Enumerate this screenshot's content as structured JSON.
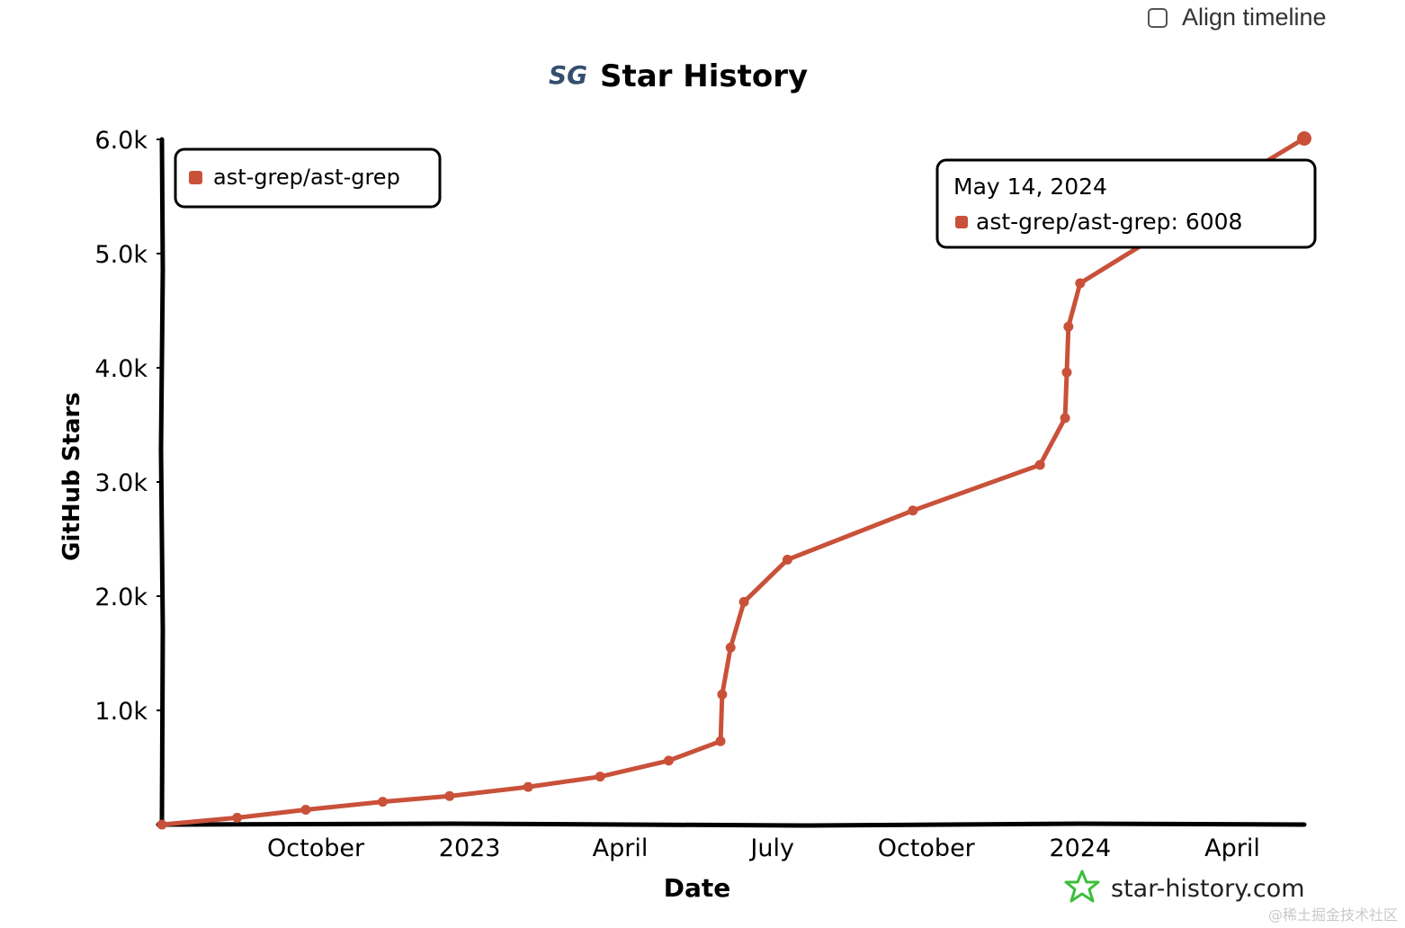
{
  "align_timeline": {
    "label": "Align timeline",
    "checked": false
  },
  "chart_data": {
    "type": "line",
    "title": "Star History",
    "logo_text": "SG",
    "xlabel": "Date",
    "ylabel": "GitHub Stars",
    "ylim": [
      0,
      6000
    ],
    "xlim": [
      "2022-07-01",
      "2024-05-14"
    ],
    "y_ticks": [
      {
        "value": 1000,
        "label": "1.0k"
      },
      {
        "value": 2000,
        "label": "2.0k"
      },
      {
        "value": 3000,
        "label": "3.0k"
      },
      {
        "value": 4000,
        "label": "4.0k"
      },
      {
        "value": 5000,
        "label": "5.0k"
      },
      {
        "value": 6000,
        "label": "6.0k"
      }
    ],
    "x_ticks": [
      {
        "date": "2022-10-01",
        "label": "October"
      },
      {
        "date": "2023-01-01",
        "label": "2023"
      },
      {
        "date": "2023-04-01",
        "label": "April"
      },
      {
        "date": "2023-07-01",
        "label": "July"
      },
      {
        "date": "2023-10-01",
        "label": "October"
      },
      {
        "date": "2024-01-01",
        "label": "2024"
      },
      {
        "date": "2024-04-01",
        "label": "April"
      }
    ],
    "grid": false,
    "legend_position": "top-left",
    "series": [
      {
        "name": "ast-grep/ast-grep",
        "color": "#c9513a",
        "points": [
          {
            "date": "2022-07-01",
            "value": 0
          },
          {
            "date": "2022-08-15",
            "value": 60
          },
          {
            "date": "2022-09-25",
            "value": 130
          },
          {
            "date": "2022-11-10",
            "value": 200
          },
          {
            "date": "2022-12-20",
            "value": 250
          },
          {
            "date": "2023-02-05",
            "value": 330
          },
          {
            "date": "2023-03-20",
            "value": 420
          },
          {
            "date": "2023-04-30",
            "value": 560
          },
          {
            "date": "2023-05-31",
            "value": 730
          },
          {
            "date": "2023-06-01",
            "value": 1140
          },
          {
            "date": "2023-06-06",
            "value": 1550
          },
          {
            "date": "2023-06-14",
            "value": 1950
          },
          {
            "date": "2023-07-10",
            "value": 2320
          },
          {
            "date": "2023-09-23",
            "value": 2750
          },
          {
            "date": "2023-12-08",
            "value": 3150
          },
          {
            "date": "2023-12-23",
            "value": 3560
          },
          {
            "date": "2023-12-24",
            "value": 3960
          },
          {
            "date": "2023-12-25",
            "value": 4360
          },
          {
            "date": "2024-01-01",
            "value": 4740
          },
          {
            "date": "2024-02-22",
            "value": 5210
          },
          {
            "date": "2024-03-31",
            "value": 5620
          },
          {
            "date": "2024-05-14",
            "value": 6008
          }
        ]
      }
    ],
    "tooltip": {
      "date_label": "May 14, 2024",
      "series_label": "ast-grep/ast-grep: 6008"
    }
  },
  "footer": {
    "brand": "star-history.com"
  },
  "watermark": "@稀土掘金技术社区"
}
